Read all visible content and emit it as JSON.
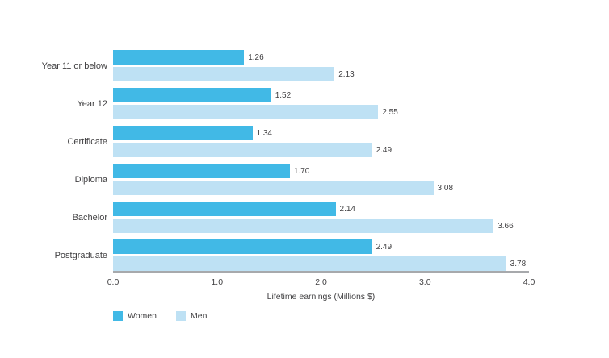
{
  "chart_data": {
    "type": "bar",
    "orientation": "horizontal",
    "title": "",
    "categories": [
      "Year 11 or below",
      "Year 12",
      "Certificate",
      "Diploma",
      "Bachelor",
      "Postgraduate"
    ],
    "series": [
      {
        "name": "Women",
        "color": "#41b9e6",
        "values": [
          1.26,
          1.52,
          1.34,
          1.7,
          2.14,
          2.49
        ],
        "labels": [
          "1.26",
          "1.52",
          "1.34",
          "1.70",
          "2.14",
          "2.49"
        ]
      },
      {
        "name": "Men",
        "color": "#bee1f4",
        "values": [
          2.13,
          2.55,
          2.49,
          3.08,
          3.66,
          3.78
        ],
        "labels": [
          "2.13",
          "2.55",
          "2.49",
          "3.08",
          "3.66",
          "3.78"
        ]
      }
    ],
    "xlabel": "Lifetime earnings (Millions $)",
    "xticks": [
      "0.0",
      "1.0",
      "2.0",
      "3.0",
      "4.0"
    ],
    "xlim": [
      0,
      4
    ],
    "grid": false,
    "legend_position": "bottom-left",
    "value_labels_shown": true,
    "axis_line_color": "#a7a9ac",
    "text_color": "#414042",
    "background_color": "#ffffff"
  }
}
